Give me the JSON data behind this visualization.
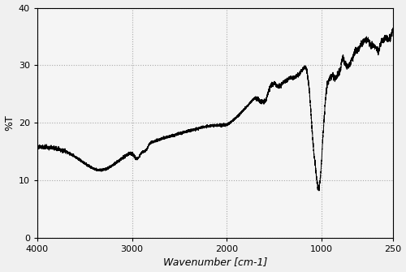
{
  "title": "",
  "xlabel": "Wavenumber [cm-1]",
  "ylabel": "%T",
  "xlim": [
    4000,
    250
  ],
  "ylim": [
    0,
    40
  ],
  "yticks": [
    0,
    10,
    20,
    30,
    40
  ],
  "xticks": [
    4000,
    3000,
    2000,
    1000,
    250
  ],
  "xticklabels": [
    "4000",
    "3000",
    "2000",
    "1000",
    "250"
  ],
  "background_color": "#f0f0f0",
  "plot_bg_color": "#f5f5f5",
  "line_color": "#000000",
  "grid_color": "#aaaaaa",
  "grid_style": ":"
}
